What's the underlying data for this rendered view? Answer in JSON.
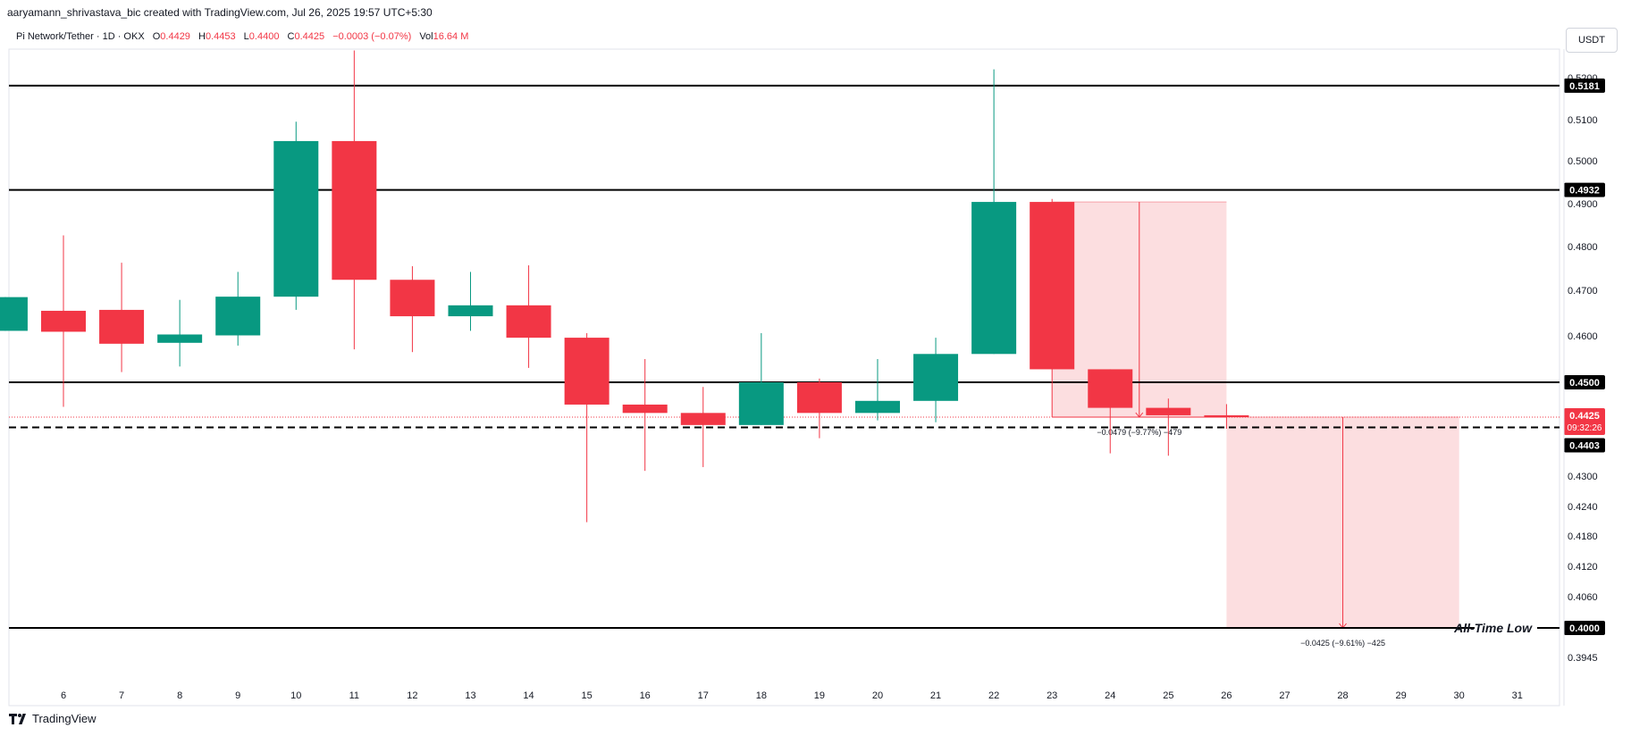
{
  "header": {
    "author_line": "aaryamann_shrivastava_bic created with TradingView.com, Jul 26, 2025 19:57 UTC+5:30",
    "symbol": "Pi Network/Tether · 1D · OKX",
    "o_label": "O",
    "o_value": "0.4429",
    "h_label": "H",
    "h_value": "0.4453",
    "l_label": "L",
    "l_value": "0.4400",
    "c_label": "C",
    "c_value": "0.4425",
    "change": "−0.0003 (−0.07%)",
    "vol_label": "Vol",
    "vol_value": "16.64 M"
  },
  "currency_button": "USDT",
  "brand": "TradingView",
  "colors": {
    "up": "#089981",
    "down": "#f23645",
    "zone": "#fbd3d6",
    "line": "#000000"
  },
  "chart_data": {
    "type": "candlestick",
    "y_ticks": [
      "0.5200",
      "0.5100",
      "0.5000",
      "0.4900",
      "0.4800",
      "0.4700",
      "0.4600",
      "0.4500",
      "0.4400",
      "0.4300",
      "0.4240",
      "0.4180",
      "0.4120",
      "0.4060",
      "0.4000",
      "0.3945"
    ],
    "x_ticks": [
      "6",
      "7",
      "8",
      "9",
      "10",
      "11",
      "12",
      "13",
      "14",
      "15",
      "16",
      "17",
      "18",
      "19",
      "20",
      "21",
      "22",
      "23",
      "24",
      "25",
      "26",
      "27",
      "28",
      "29",
      "30",
      "31"
    ],
    "candles": [
      {
        "x": 5,
        "o": 0.4611,
        "h": 0.4685,
        "l": 0.4611,
        "c": 0.4685
      },
      {
        "x": 6,
        "o": 0.4655,
        "h": 0.4826,
        "l": 0.4447,
        "c": 0.4609
      },
      {
        "x": 7,
        "o": 0.4657,
        "h": 0.4763,
        "l": 0.4522,
        "c": 0.4583
      },
      {
        "x": 8,
        "o": 0.4585,
        "h": 0.4679,
        "l": 0.4534,
        "c": 0.4603
      },
      {
        "x": 9,
        "o": 0.4601,
        "h": 0.4742,
        "l": 0.4579,
        "c": 0.4686
      },
      {
        "x": 10,
        "o": 0.4686,
        "h": 0.5095,
        "l": 0.4657,
        "c": 0.5048
      },
      {
        "x": 11,
        "o": 0.5048,
        "h": 0.5265,
        "l": 0.4571,
        "c": 0.4724
      },
      {
        "x": 12,
        "o": 0.4724,
        "h": 0.4755,
        "l": 0.4565,
        "c": 0.4643
      },
      {
        "x": 13,
        "o": 0.4643,
        "h": 0.4742,
        "l": 0.4611,
        "c": 0.4667
      },
      {
        "x": 14,
        "o": 0.4667,
        "h": 0.4757,
        "l": 0.4531,
        "c": 0.4596
      },
      {
        "x": 15,
        "o": 0.4596,
        "h": 0.4606,
        "l": 0.4208,
        "c": 0.4452
      },
      {
        "x": 16,
        "o": 0.4452,
        "h": 0.455,
        "l": 0.4311,
        "c": 0.4434
      },
      {
        "x": 17,
        "o": 0.4434,
        "h": 0.449,
        "l": 0.4319,
        "c": 0.4408
      },
      {
        "x": 18,
        "o": 0.4408,
        "h": 0.4606,
        "l": 0.4408,
        "c": 0.45
      },
      {
        "x": 19,
        "o": 0.45,
        "h": 0.4508,
        "l": 0.438,
        "c": 0.4434
      },
      {
        "x": 20,
        "o": 0.4434,
        "h": 0.455,
        "l": 0.4418,
        "c": 0.446
      },
      {
        "x": 21,
        "o": 0.446,
        "h": 0.4596,
        "l": 0.4414,
        "c": 0.4561
      },
      {
        "x": 22,
        "o": 0.4561,
        "h": 0.522,
        "l": 0.4561,
        "c": 0.4904
      },
      {
        "x": 23,
        "o": 0.4904,
        "h": 0.4911,
        "l": 0.4425,
        "c": 0.4528
      },
      {
        "x": 24,
        "o": 0.4528,
        "h": 0.4528,
        "l": 0.4348,
        "c": 0.4445
      },
      {
        "x": 25,
        "o": 0.4445,
        "h": 0.4465,
        "l": 0.4343,
        "c": 0.4429
      },
      {
        "x": 26,
        "o": 0.4429,
        "h": 0.4453,
        "l": 0.44,
        "c": 0.4425
      }
    ],
    "horizontal_levels": [
      {
        "value": 0.5181,
        "label": "0.5181"
      },
      {
        "value": 0.4932,
        "label": "0.4932"
      },
      {
        "value": 0.45,
        "label": "0.4500"
      },
      {
        "value": 0.4,
        "label": "0.4000",
        "annotation": "All-Time Low"
      }
    ],
    "dashed_level": {
      "value": 0.4403,
      "label": "0.4403"
    },
    "current_price": {
      "value": 0.4425,
      "label": "0.4425",
      "countdown": "09:32:26"
    },
    "measure_zones": [
      {
        "x_start": 23,
        "x_end": 26,
        "y_top": 0.4904,
        "y_bottom": 0.4425,
        "label": "−0.0479 (−9.77%) −479",
        "arrow_x": 24.5
      },
      {
        "x_start": 26,
        "x_end": 30,
        "y_top": 0.4425,
        "y_bottom": 0.4,
        "label": "−0.0425 (−9.61%) −425",
        "arrow_x": 28
      }
    ]
  }
}
